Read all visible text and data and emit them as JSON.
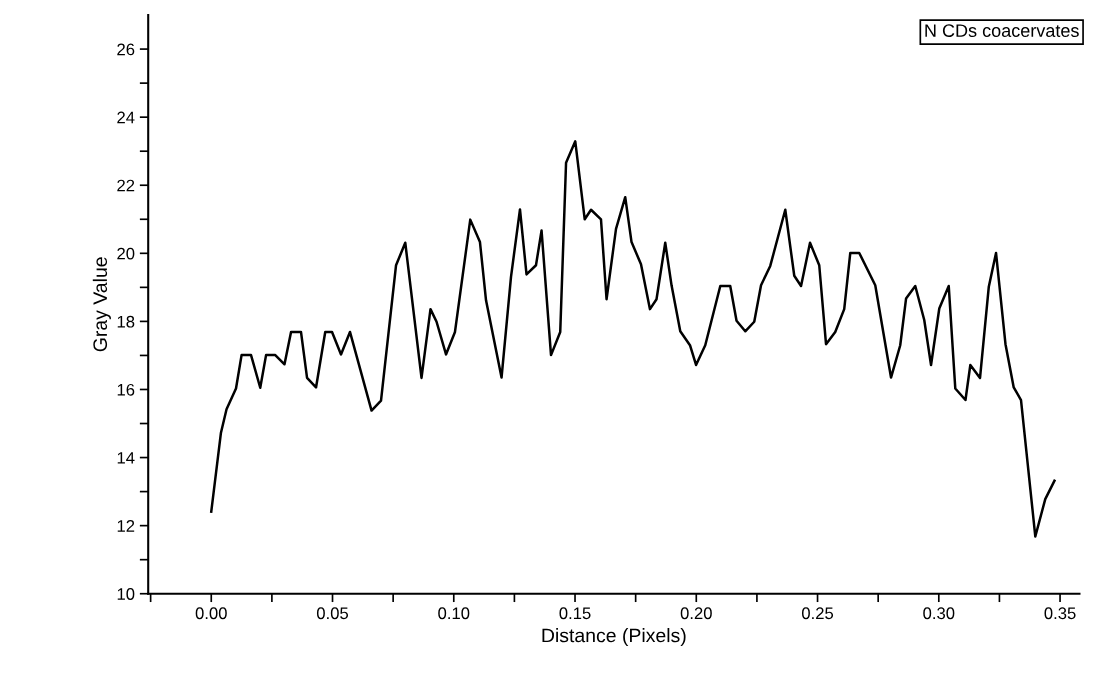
{
  "chart_data": {
    "type": "line",
    "xlabel": "Distance (Pixels)",
    "ylabel": "Gray Value",
    "annotations": [
      "N CDs coacervates"
    ],
    "series": [
      {
        "color": "#000000",
        "x": [
          0,
          0.004,
          0.0063,
          0.0102,
          0.0125,
          0.0164,
          0.0202,
          0.0226,
          0.0264,
          0.0302,
          0.0329,
          0.037,
          0.0395,
          0.0432,
          0.047,
          0.0498,
          0.0535,
          0.0572,
          0.0661,
          0.07,
          0.0762,
          0.08,
          0.0867,
          0.0904,
          0.0929,
          0.0968,
          0.1005,
          0.1068,
          0.1108,
          0.1133,
          0.1197,
          0.1236,
          0.1273,
          0.13,
          0.1339,
          0.1362,
          0.1401,
          0.1439,
          0.1463,
          0.1501,
          0.154,
          0.1566,
          0.1607,
          0.163,
          0.1669,
          0.1707,
          0.1733,
          0.1772,
          0.1809,
          0.1836,
          0.1872,
          0.1898,
          0.1934,
          0.1974,
          0.1999,
          0.2037,
          0.2099,
          0.214,
          0.2166,
          0.2202,
          0.2239,
          0.2267,
          0.2305,
          0.2367,
          0.2404,
          0.2432,
          0.2469,
          0.2507,
          0.2535,
          0.2573,
          0.261,
          0.2635,
          0.2672,
          0.2738,
          0.2803,
          0.2841,
          0.2865,
          0.2903,
          0.294,
          0.2968,
          0.3002,
          0.3041,
          0.3068,
          0.311,
          0.313,
          0.317,
          0.3206,
          0.3236,
          0.3275,
          0.3309,
          0.3339,
          0.3398,
          0.3439,
          0.3477
        ],
        "values": [
          12.41,
          14.73,
          15.42,
          16.03,
          17.01,
          17.01,
          16.05,
          17.01,
          17.01,
          16.74,
          17.69,
          17.69,
          16.34,
          16.06,
          17.69,
          17.69,
          17.03,
          17.69,
          15.38,
          15.67,
          19.65,
          20.31,
          16.34,
          18.36,
          17.99,
          17.03,
          17.69,
          20.99,
          20.33,
          18.62,
          16.35,
          19.31,
          21.29,
          19.38,
          19.65,
          20.67,
          17.01,
          17.69,
          22.66,
          23.29,
          21.0,
          21.28,
          21.0,
          18.65,
          20.72,
          21.65,
          20.33,
          19.68,
          18.36,
          18.65,
          20.31,
          19.06,
          17.71,
          17.3,
          16.72,
          17.3,
          19.04,
          19.04,
          18.02,
          17.71,
          17.99,
          19.06,
          19.63,
          21.28,
          19.34,
          19.04,
          20.31,
          19.65,
          17.33,
          17.69,
          18.36,
          20.01,
          20.01,
          19.06,
          16.35,
          17.3,
          18.67,
          19.04,
          18.04,
          16.72,
          18.38,
          19.04,
          16.03,
          15.69,
          16.72,
          16.34,
          19.01,
          20.01,
          17.33,
          16.06,
          15.69,
          11.68,
          12.78,
          13.32
        ]
      }
    ],
    "xlim": [
      -0.026,
      0.358
    ],
    "xticks": [
      {
        "value": -0.025,
        "label": null
      },
      {
        "value": 0.0,
        "label": "0.00"
      },
      {
        "value": 0.025,
        "label": null
      },
      {
        "value": 0.05,
        "label": "0.05"
      },
      {
        "value": 0.075,
        "label": null
      },
      {
        "value": 0.1,
        "label": "0.10"
      },
      {
        "value": 0.125,
        "label": null
      },
      {
        "value": 0.15,
        "label": "0.15"
      },
      {
        "value": 0.175,
        "label": null
      },
      {
        "value": 0.2,
        "label": "0.20"
      },
      {
        "value": 0.225,
        "label": null
      },
      {
        "value": 0.25,
        "label": "0.25"
      },
      {
        "value": 0.275,
        "label": null
      },
      {
        "value": 0.3,
        "label": "0.30"
      },
      {
        "value": 0.325,
        "label": null
      },
      {
        "value": 0.35,
        "label": "0.35"
      }
    ],
    "ylim": [
      10,
      27
    ],
    "yticks": [
      10,
      {
        "value": 11,
        "label": null
      },
      12,
      {
        "value": 13,
        "label": null
      },
      14,
      {
        "value": 15,
        "label": null
      },
      16,
      {
        "value": 17,
        "label": null
      },
      18,
      {
        "value": 19,
        "label": null
      },
      20,
      {
        "value": 21,
        "label": null
      },
      22,
      {
        "value": 23,
        "label": null
      },
      24,
      {
        "value": 25,
        "label": null
      },
      26
    ],
    "grid": false,
    "legend": false,
    "line_style": "solid",
    "marker": "none"
  }
}
